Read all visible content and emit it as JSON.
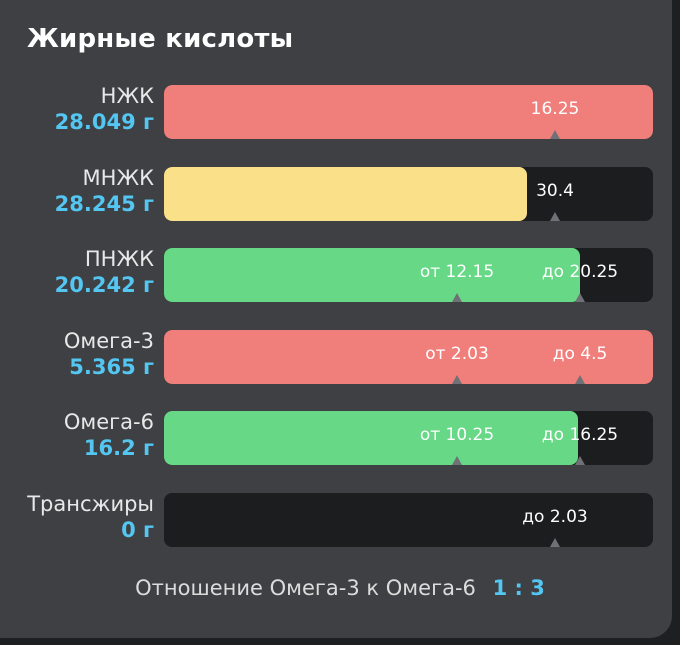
{
  "title": "Жирные кислоты",
  "rows": [
    {
      "name": "НЖК",
      "amount": "28.049 г",
      "fill_ratio": 1.0,
      "fill_color": "#f07f7b",
      "markers": [
        {
          "text": "16.25",
          "pos": 0.8
        }
      ]
    },
    {
      "name": "МНЖК",
      "amount": "28.245 г",
      "fill_ratio": 0.742,
      "fill_color": "#fbe08a",
      "markers": [
        {
          "text": "30.4",
          "pos": 0.8
        }
      ]
    },
    {
      "name": "ПНЖК",
      "amount": "20.242 г",
      "fill_ratio": 0.85,
      "fill_color": "#66d886",
      "markers": [
        {
          "text": "от 12.15",
          "pos": 0.6
        },
        {
          "text": "до 20.25",
          "pos": 0.85
        }
      ]
    },
    {
      "name": "Омега-3",
      "amount": "5.365 г",
      "fill_ratio": 1.0,
      "fill_color": "#f07f7b",
      "markers": [
        {
          "text": "от 2.03",
          "pos": 0.6
        },
        {
          "text": "до 4.5",
          "pos": 0.85
        }
      ]
    },
    {
      "name": "Омега-6",
      "amount": "16.2 г",
      "fill_ratio": 0.847,
      "fill_color": "#66d886",
      "markers": [
        {
          "text": "от 10.25",
          "pos": 0.6
        },
        {
          "text": "до 16.25",
          "pos": 0.85
        }
      ]
    },
    {
      "name": "Трансжиры",
      "amount": "0 г",
      "fill_ratio": 0.0,
      "fill_color": "#66d886",
      "markers": [
        {
          "text": "до 2.03",
          "pos": 0.8
        }
      ]
    }
  ],
  "ratio": {
    "label": "Отношение Омега-3 к Омега-6",
    "value": "1 : 3"
  }
}
